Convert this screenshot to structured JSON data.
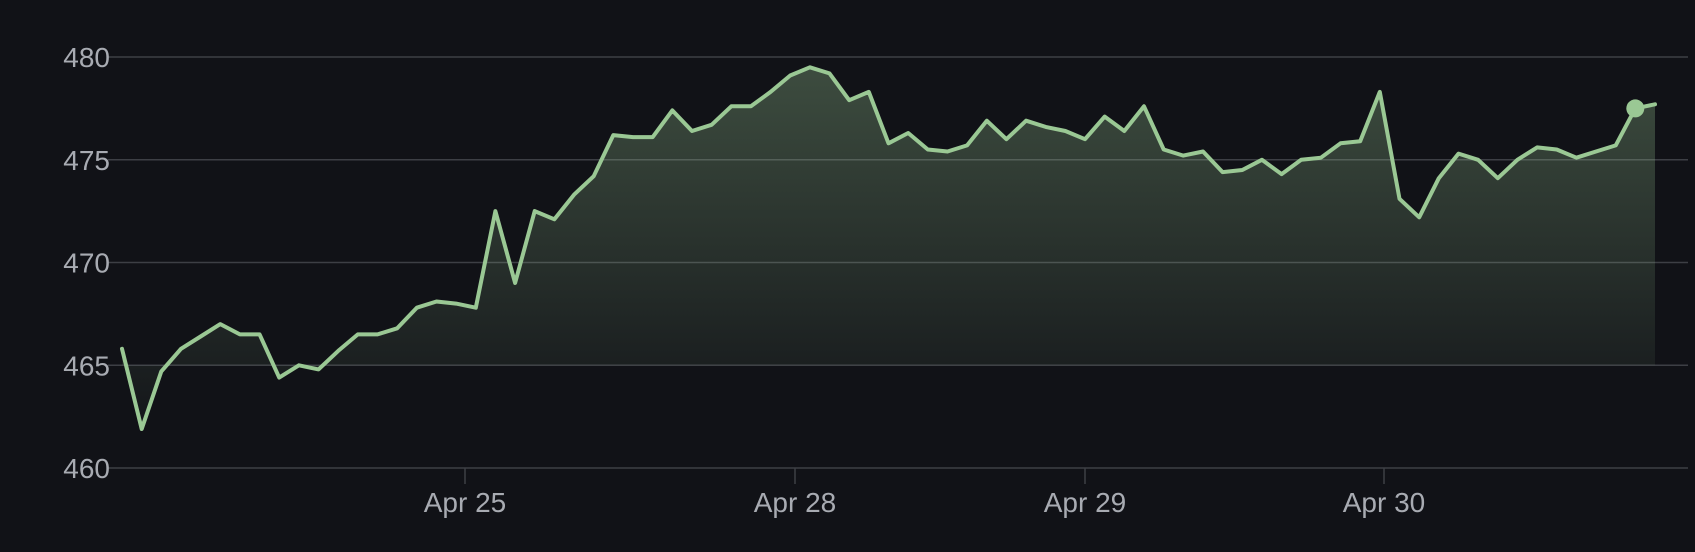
{
  "chart_data": {
    "type": "area",
    "title": "",
    "xlabel": "",
    "ylabel": "",
    "ylim": [
      460,
      480
    ],
    "y_ticks": [
      "460",
      "465",
      "470",
      "475",
      "480"
    ],
    "x_ticks": [
      "Apr 25",
      "Apr 28",
      "Apr 29",
      "Apr 30"
    ],
    "grid": true,
    "legend": "none",
    "colors": {
      "background": "#111217",
      "gridline": "#3d3f45",
      "line": "#9ac894",
      "tick_text": "#a8abb2"
    },
    "series": [
      {
        "values": [
          465.8,
          461.9,
          464.7,
          465.8,
          466.4,
          467.0,
          466.5,
          466.5,
          464.4,
          465.0,
          464.8,
          465.7,
          466.5,
          466.5,
          466.8,
          467.8,
          468.1,
          468.0,
          467.8,
          472.5,
          469.0,
          472.5,
          472.1,
          473.3,
          474.2,
          476.2,
          476.1,
          476.1,
          477.4,
          476.4,
          476.7,
          477.6,
          477.6,
          478.3,
          479.1,
          479.5,
          479.2,
          477.9,
          478.3,
          475.8,
          476.3,
          475.5,
          475.4,
          475.7,
          476.9,
          476.0,
          476.9,
          476.6,
          476.4,
          476.0,
          477.1,
          476.4,
          477.6,
          475.5,
          475.2,
          475.4,
          474.4,
          474.5,
          475.0,
          474.3,
          475.0,
          475.1,
          475.8,
          475.9,
          478.3,
          473.1,
          472.2,
          474.1,
          475.3,
          475.0,
          474.1,
          475.0,
          475.6,
          475.5,
          475.1,
          475.4,
          475.7,
          477.5,
          477.7
        ]
      }
    ]
  }
}
